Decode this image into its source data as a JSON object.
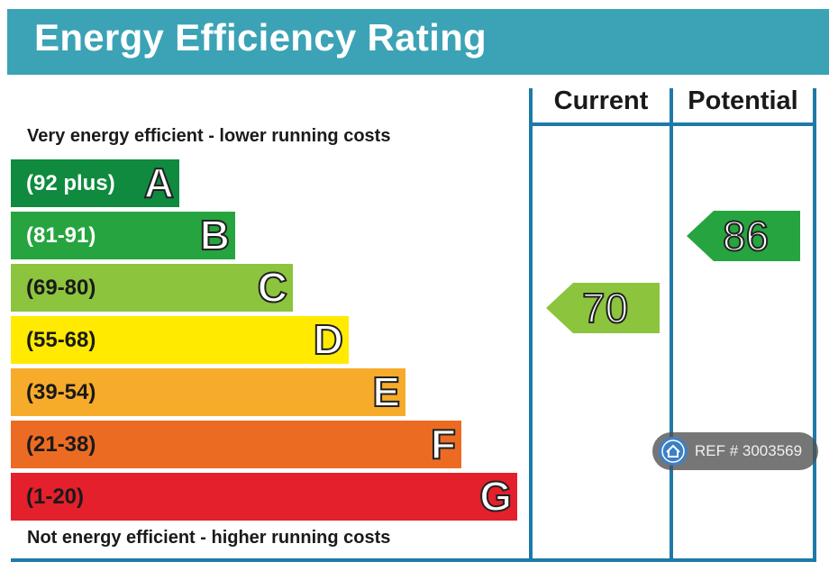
{
  "title": "Energy Efficiency Rating",
  "top_caption": "Very energy efficient - lower running costs",
  "bottom_caption": "Not energy efficient - higher running costs",
  "columns": {
    "current": "Current",
    "potential": "Potential"
  },
  "colors": {
    "header": "#3ba3b5",
    "grid": "#1e7aa8"
  },
  "chart_data": {
    "type": "table",
    "bands": [
      {
        "letter": "A",
        "range": "(92 plus)",
        "color": "#0f8a3f",
        "text_color": "#ffffff"
      },
      {
        "letter": "B",
        "range": "(81-91)",
        "color": "#26a43f",
        "text_color": "#ffffff"
      },
      {
        "letter": "C",
        "range": "(69-80)",
        "color": "#8cc43e",
        "text_color": "#1a1a1a"
      },
      {
        "letter": "D",
        "range": "(55-68)",
        "color": "#ffea00",
        "text_color": "#1a1a1a"
      },
      {
        "letter": "E",
        "range": "(39-54)",
        "color": "#f6ab2a",
        "text_color": "#1a1a1a"
      },
      {
        "letter": "F",
        "range": "(21-38)",
        "color": "#ec6b23",
        "text_color": "#1a1a1a"
      },
      {
        "letter": "G",
        "range": "(1-20)",
        "color": "#e3202b",
        "text_color": "#1a1a1a"
      }
    ],
    "current": {
      "value": "70",
      "band": "C",
      "color": "#8cc43e"
    },
    "potential": {
      "value": "86",
      "band": "B",
      "color": "#26a43f"
    }
  },
  "watermark": {
    "text": "REF # 3003569",
    "icon": "home-icon"
  }
}
